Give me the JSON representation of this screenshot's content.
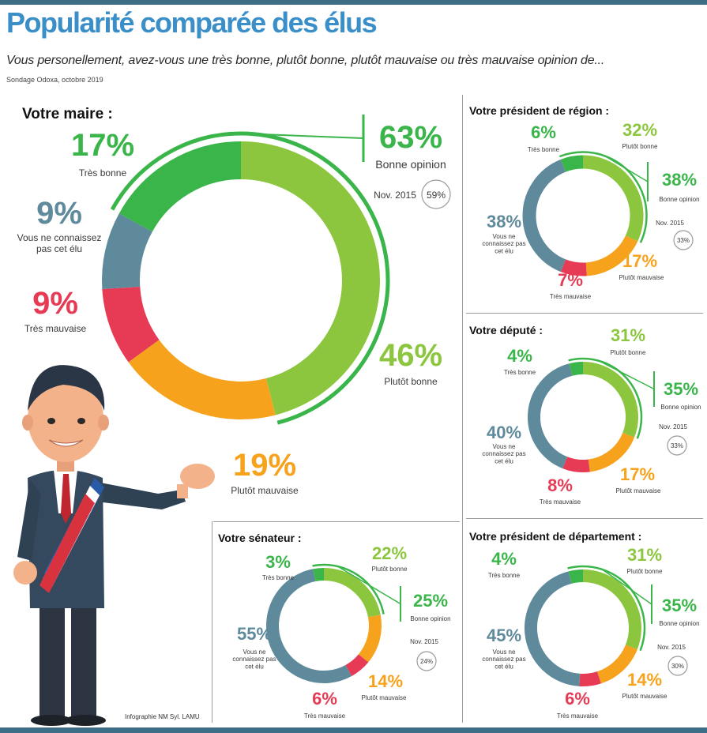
{
  "title": "Popularité comparée des élus",
  "subtitle": "Vous personellement, avez-vous une très bonne, plutôt bonne, plutôt mauvaise ou très mauvaise opinion de...",
  "source": "Sondage Odoxa, octobre 2019",
  "credit": "Infographie NM Syl. LAMU",
  "colors": {
    "tres_bonne": "#3ab54a",
    "plutot_bonne": "#8cc63f",
    "plutot_mauvaise": "#f6a21d",
    "tres_mauvaise": "#e63a55",
    "ne_connait_pas": "#5e8a9c",
    "accent_title": "#3a8fc9",
    "nov_text": "#9a9a9a"
  },
  "chart_data": [
    {
      "type": "pie",
      "title": "Votre maire :",
      "slices": [
        {
          "label": "Plutôt bonne",
          "value": 46
        },
        {
          "label": "Plutôt mauvaise",
          "value": 19
        },
        {
          "label": "Très mauvaise",
          "value": 9
        },
        {
          "label": "Vous ne connaissez pas cet élu",
          "value": 9
        },
        {
          "label": "Très bonne",
          "value": 17
        }
      ],
      "bonne_opinion": {
        "value": "63%",
        "label": "Bonne opinion",
        "nov_label": "Nov. 2015",
        "nov_value": "59%"
      }
    },
    {
      "type": "pie",
      "title": "Votre président de région :",
      "slices": [
        {
          "label": "Plutôt bonne",
          "value": 32
        },
        {
          "label": "Plutôt mauvaise",
          "value": 17
        },
        {
          "label": "Très mauvaise",
          "value": 7
        },
        {
          "label": "Vous ne connaissez pas cet élu",
          "value": 38
        },
        {
          "label": "Très bonne",
          "value": 6
        }
      ],
      "bonne_opinion": {
        "value": "38%",
        "label": "Bonne opinion",
        "nov_label": "Nov. 2015",
        "nov_value": "33%"
      }
    },
    {
      "type": "pie",
      "title": "Votre député :",
      "slices": [
        {
          "label": "Plutôt bonne",
          "value": 31
        },
        {
          "label": "Plutôt mauvaise",
          "value": 17
        },
        {
          "label": "Très mauvaise",
          "value": 8
        },
        {
          "label": "Vous ne connaissez pas cet élu",
          "value": 40
        },
        {
          "label": "Très bonne",
          "value": 4
        }
      ],
      "bonne_opinion": {
        "value": "35%",
        "label": "Bonne opinion",
        "nov_label": "Nov. 2015",
        "nov_value": "33%"
      }
    },
    {
      "type": "pie",
      "title": "Votre sénateur :",
      "slices": [
        {
          "label": "Plutôt bonne",
          "value": 22
        },
        {
          "label": "Plutôt mauvaise",
          "value": 14
        },
        {
          "label": "Très mauvaise",
          "value": 6
        },
        {
          "label": "Vous ne connaissez pas cet élu",
          "value": 55
        },
        {
          "label": "Très bonne",
          "value": 3
        }
      ],
      "bonne_opinion": {
        "value": "25%",
        "label": "Bonne opinion",
        "nov_label": "Nov. 2015",
        "nov_value": "24%"
      }
    },
    {
      "type": "pie",
      "title": "Votre président de département :",
      "slices": [
        {
          "label": "Plutôt bonne",
          "value": 31
        },
        {
          "label": "Plutôt mauvaise",
          "value": 14
        },
        {
          "label": "Très mauvaise",
          "value": 6
        },
        {
          "label": "Vous ne connaissez pas cet élu",
          "value": 45
        },
        {
          "label": "Très bonne",
          "value": 4
        }
      ],
      "bonne_opinion": {
        "value": "35%",
        "label": "Bonne opinion",
        "nov_label": "Nov. 2015",
        "nov_value": "30%"
      }
    }
  ]
}
